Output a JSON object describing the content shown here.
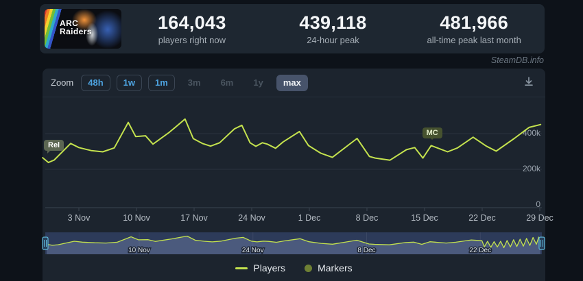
{
  "header": {
    "banner": {
      "line1": "ARC",
      "line2": "Raiders"
    },
    "stats": [
      {
        "value": "164,043",
        "label": "players right now"
      },
      {
        "value": "439,118",
        "label": "24-hour peak"
      },
      {
        "value": "481,966",
        "label": "all-time peak last month"
      }
    ]
  },
  "watermark": "SteamDB.info",
  "toolbar": {
    "zoom_label": "Zoom",
    "options": [
      {
        "label": "48h",
        "state": "enabled"
      },
      {
        "label": "1w",
        "state": "enabled"
      },
      {
        "label": "1m",
        "state": "enabled"
      },
      {
        "label": "3m",
        "state": "disabled"
      },
      {
        "label": "6m",
        "state": "disabled"
      },
      {
        "label": "1y",
        "state": "disabled"
      },
      {
        "label": "max",
        "state": "selected"
      }
    ],
    "download_icon": "download-chart-icon"
  },
  "legend": {
    "players_label": "Players",
    "markers_label": "Markers"
  },
  "colors": {
    "line": "#c4e24e",
    "legend_marker_dot": "#6e8034",
    "panel": "#1c242e",
    "page_bg": "#0d1219",
    "zoom_active_text": "#4da3e0",
    "navigator_mask": "#4a63b0"
  },
  "chart_data": {
    "type": "line",
    "title": "",
    "xlabel": "",
    "ylabel": "",
    "x_unit": "days since 30 Oct (release day 0), players in thousands",
    "series": [
      {
        "name": "Players",
        "color": "#c4e24e",
        "points": [
          [
            -0.4,
            265
          ],
          [
            0.3,
            238
          ],
          [
            1,
            252
          ],
          [
            3,
            345
          ],
          [
            4,
            322
          ],
          [
            5.5,
            305
          ],
          [
            6.9,
            298
          ],
          [
            8.3,
            320
          ],
          [
            10,
            463
          ],
          [
            10.9,
            384
          ],
          [
            12.1,
            388
          ],
          [
            13,
            341
          ],
          [
            15,
            408
          ],
          [
            16.9,
            482
          ],
          [
            17.9,
            372
          ],
          [
            19,
            345
          ],
          [
            20,
            330
          ],
          [
            21.1,
            349
          ],
          [
            22.9,
            427
          ],
          [
            23.8,
            447
          ],
          [
            24.8,
            349
          ],
          [
            25.5,
            329
          ],
          [
            26.3,
            349
          ],
          [
            26.9,
            341
          ],
          [
            27.9,
            318
          ],
          [
            28.8,
            353
          ],
          [
            30.8,
            412
          ],
          [
            31.9,
            333
          ],
          [
            33.4,
            290
          ],
          [
            34.8,
            267
          ],
          [
            37.8,
            373
          ],
          [
            39.3,
            272
          ],
          [
            40,
            263
          ],
          [
            41.8,
            251
          ],
          [
            43.8,
            310
          ],
          [
            44.8,
            322
          ],
          [
            45.8,
            263
          ],
          [
            46.8,
            333
          ],
          [
            48.8,
            298
          ],
          [
            50,
            320
          ],
          [
            51.9,
            380
          ],
          [
            53.5,
            330
          ],
          [
            54.7,
            302
          ],
          [
            56.9,
            373
          ],
          [
            58.7,
            435
          ],
          [
            60.1,
            451
          ]
        ]
      }
    ],
    "x_axis": {
      "ticks": [
        {
          "label": "3 Nov",
          "day": 4
        },
        {
          "label": "10 Nov",
          "day": 11
        },
        {
          "label": "17 Nov",
          "day": 18
        },
        {
          "label": "24 Nov",
          "day": 25
        },
        {
          "label": "1 Dec",
          "day": 32
        },
        {
          "label": "8 Dec",
          "day": 39
        },
        {
          "label": "15 Dec",
          "day": 46
        },
        {
          "label": "22 Dec",
          "day": 53
        },
        {
          "label": "29 Dec",
          "day": 60
        }
      ]
    },
    "y_axis": {
      "ticks": [
        {
          "label": "400k",
          "value_k": 400
        },
        {
          "label": "200k",
          "value_k": 200
        },
        {
          "label": "0",
          "value_k": 0
        }
      ],
      "ylim_k": [
        0,
        570
      ],
      "grid": true
    },
    "markers": [
      {
        "label": "Rel",
        "day": 0,
        "players_k": 265
      },
      {
        "label": "MC",
        "day": 46.8,
        "players_k": 333
      }
    ],
    "navigator": {
      "selected_range": "max",
      "tick_labels": [
        {
          "label": "10 Nov",
          "day": 11
        },
        {
          "label": "24 Nov",
          "day": 25
        },
        {
          "label": "8 Dec",
          "day": 39
        },
        {
          "label": "22 Dec",
          "day": 53
        }
      ],
      "tail_points": [
        [
          53.2,
          360
        ],
        [
          53.5,
          200
        ],
        [
          53.9,
          345
        ],
        [
          54.3,
          185
        ],
        [
          54.7,
          335
        ],
        [
          55.1,
          195
        ],
        [
          55.5,
          345
        ],
        [
          55.9,
          175
        ],
        [
          56.3,
          365
        ],
        [
          56.7,
          195
        ],
        [
          57.1,
          385
        ],
        [
          57.5,
          205
        ],
        [
          57.9,
          400
        ],
        [
          58.3,
          215
        ],
        [
          58.7,
          420
        ],
        [
          59.1,
          235
        ],
        [
          59.5,
          445
        ],
        [
          59.9,
          265
        ],
        [
          60.2,
          455
        ],
        [
          60.4,
          310
        ]
      ]
    },
    "legend_position": "bottom-center"
  }
}
